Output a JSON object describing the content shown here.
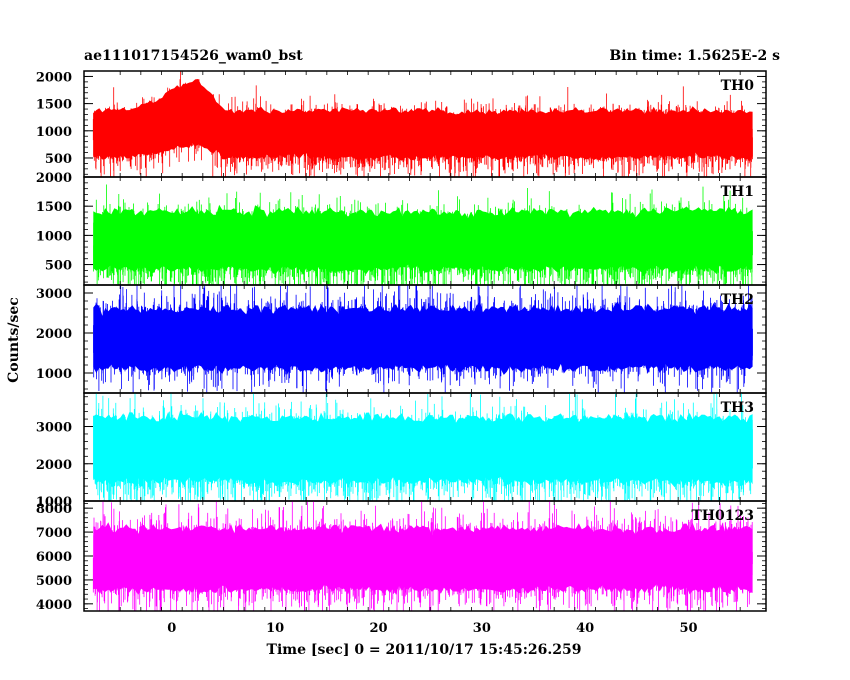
{
  "chart_data": {
    "type": "line",
    "title_left": "ae111017154526_wam0_bst",
    "title_right": "Bin time: 1.5625E-2 s",
    "xlabel": "Time [sec] 0 = 2011/10/17 15:45:26.259",
    "ylabel": "Counts/sec",
    "xlim": [
      -8.5,
      57.5
    ],
    "data_x_range": [
      -7.6,
      56.2
    ],
    "x_ticks": [
      0,
      10,
      20,
      30,
      40,
      50
    ],
    "panels": [
      {
        "name": "TH0",
        "color": "#ff0000",
        "ylim": [
          150,
          2100
        ],
        "y_ticks": [
          500,
          1000,
          1500,
          2000
        ],
        "base_mean": 850,
        "lower_baseline": 450,
        "upper_baseline": 1450,
        "burst": {
          "start": -4,
          "peak": 2.5,
          "end": 5,
          "mean_gain": 400,
          "upper_gain": 600
        }
      },
      {
        "name": "TH1",
        "color": "#00ff00",
        "ylim": [
          150,
          2000
        ],
        "y_ticks": [
          500,
          1000,
          1500,
          2000
        ],
        "base_mean": 800,
        "lower_baseline": 350,
        "upper_baseline": 1500
      },
      {
        "name": "TH2",
        "color": "#0000ff",
        "ylim": [
          500,
          3200
        ],
        "y_ticks": [
          1000,
          2000,
          3000
        ],
        "base_mean": 1850,
        "lower_baseline": 1000,
        "upper_baseline": 2750
      },
      {
        "name": "TH3",
        "color": "#00ffff",
        "ylim": [
          1000,
          3900
        ],
        "y_ticks": [
          1000,
          2000,
          3000
        ],
        "base_mean": 2200,
        "lower_baseline": 1400,
        "upper_baseline": 3400
      },
      {
        "name": "TH0123",
        "color": "#ff00ff",
        "ylim": [
          3700,
          8300
        ],
        "y_ticks": [
          4000,
          5000,
          6000,
          7000,
          8000
        ],
        "base_mean": 5750,
        "lower_baseline": 4400,
        "upper_baseline": 7400
      }
    ]
  }
}
